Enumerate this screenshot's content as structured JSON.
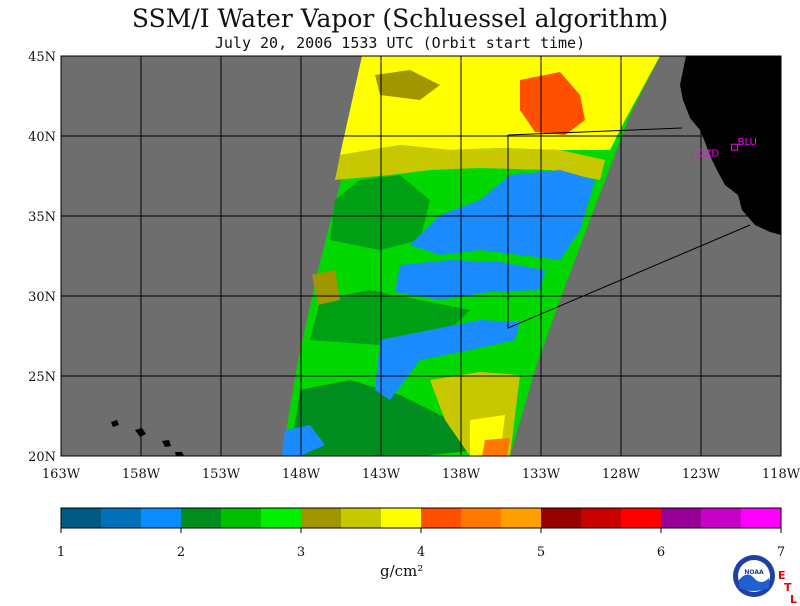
{
  "header": {
    "title": "SSM/I Water Vapor (Schluessel algorithm)",
    "subtitle": "July 20, 2006  1533 UTC  (Orbit start time)"
  },
  "map": {
    "lon_range": [
      -163,
      -118
    ],
    "lat_range": [
      20,
      45
    ],
    "lat_ticks": [
      {
        "value": 45,
        "label": "45N"
      },
      {
        "value": 40,
        "label": "40N"
      },
      {
        "value": 35,
        "label": "35N"
      },
      {
        "value": 30,
        "label": "30N"
      },
      {
        "value": 25,
        "label": "25N"
      },
      {
        "value": 20,
        "label": "20N"
      }
    ],
    "lon_ticks": [
      {
        "value": -163,
        "label": "163W"
      },
      {
        "value": -158,
        "label": "158W"
      },
      {
        "value": -153,
        "label": "153W"
      },
      {
        "value": -148,
        "label": "148W"
      },
      {
        "value": -143,
        "label": "143W"
      },
      {
        "value": -138,
        "label": "138W"
      },
      {
        "value": -133,
        "label": "133W"
      },
      {
        "value": -128,
        "label": "128W"
      },
      {
        "value": -123,
        "label": "123W"
      },
      {
        "value": -118,
        "label": "118W"
      }
    ],
    "sites": [
      {
        "label": "CZD",
        "lon": -123.4,
        "lat": 38.6
      },
      {
        "label": "BLU",
        "lon": -120.9,
        "lat": 39.3
      }
    ],
    "colors": {
      "background": "#6e6e6e",
      "land": "#000000",
      "site": "#ff00ff"
    }
  },
  "colorbar": {
    "colors": [
      "#005a82",
      "#0070b8",
      "#0a8cff",
      "#008c1e",
      "#00be00",
      "#00f000",
      "#a09600",
      "#c8c800",
      "#ffff00",
      "#ff5000",
      "#ff7800",
      "#ffa000",
      "#960000",
      "#c80000",
      "#ff0000",
      "#960096",
      "#c800c8",
      "#ff00ff"
    ],
    "tick_labels": [
      "1",
      "2",
      "3",
      "4",
      "5",
      "6",
      "7"
    ],
    "unit": "g/cm²"
  },
  "branding": {
    "logo_text": "NOAA",
    "etl_letters": [
      "E",
      "T",
      "L"
    ]
  }
}
